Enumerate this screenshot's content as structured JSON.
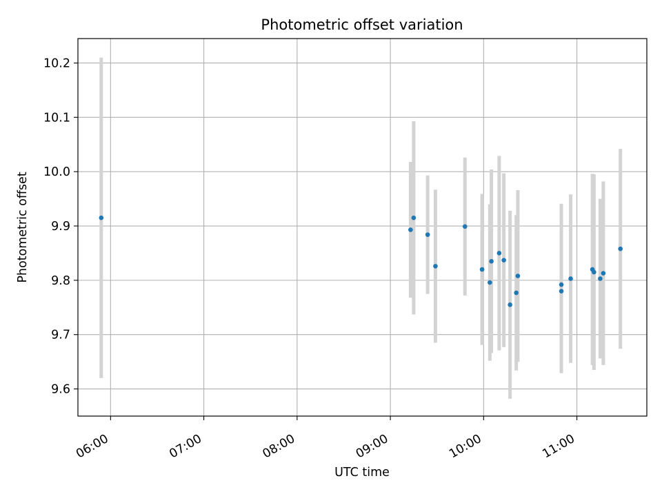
{
  "chart_data": {
    "type": "scatter",
    "title": "Photometric offset variation",
    "xlabel": "UTC time",
    "ylabel": "Photometric offset",
    "grid": true,
    "xlim": [
      "05:39",
      "11:45"
    ],
    "ylim": [
      9.55,
      10.245
    ],
    "x_ticks": [
      "06:00",
      "07:00",
      "08:00",
      "09:00",
      "10:00",
      "11:00"
    ],
    "y_ticks": [
      9.6,
      9.7,
      9.8,
      9.9,
      10.0,
      10.1,
      10.2
    ],
    "point_color": "#1f77b4",
    "errorbar_color": "#d3d3d3",
    "series": [
      {
        "points": [
          {
            "x": "05:54",
            "y": 9.915,
            "yerr": 0.295
          },
          {
            "x": "09:13",
            "y": 9.893,
            "yerr": 0.125
          },
          {
            "x": "09:15",
            "y": 9.915,
            "yerr": 0.178
          },
          {
            "x": "09:24",
            "y": 9.884,
            "yerr": 0.109
          },
          {
            "x": "09:29",
            "y": 9.826,
            "yerr": 0.141
          },
          {
            "x": "09:48",
            "y": 9.899,
            "yerr": 0.127
          },
          {
            "x": "09:59",
            "y": 9.82,
            "yerr": 0.139
          },
          {
            "x": "10:04",
            "y": 9.796,
            "yerr": 0.144
          },
          {
            "x": "10:05",
            "y": 9.835,
            "yerr": 0.169
          },
          {
            "x": "10:10",
            "y": 9.85,
            "yerr": 0.179
          },
          {
            "x": "10:13",
            "y": 9.837,
            "yerr": 0.16
          },
          {
            "x": "10:17",
            "y": 9.755,
            "yerr": 0.173
          },
          {
            "x": "10:21",
            "y": 9.777,
            "yerr": 0.143
          },
          {
            "x": "10:22",
            "y": 9.808,
            "yerr": 0.158
          },
          {
            "x": "10:50",
            "y": 9.792,
            "yerr": 0.149
          },
          {
            "x": "10:50",
            "y": 9.78,
            "yerr": 0.151
          },
          {
            "x": "10:56",
            "y": 9.803,
            "yerr": 0.155
          },
          {
            "x": "11:10",
            "y": 9.82,
            "yerr": 0.176
          },
          {
            "x": "11:11",
            "y": 9.815,
            "yerr": 0.18
          },
          {
            "x": "11:15",
            "y": 9.803,
            "yerr": 0.147
          },
          {
            "x": "11:17",
            "y": 9.813,
            "yerr": 0.169
          },
          {
            "x": "11:28",
            "y": 9.858,
            "yerr": 0.184
          }
        ]
      }
    ]
  }
}
